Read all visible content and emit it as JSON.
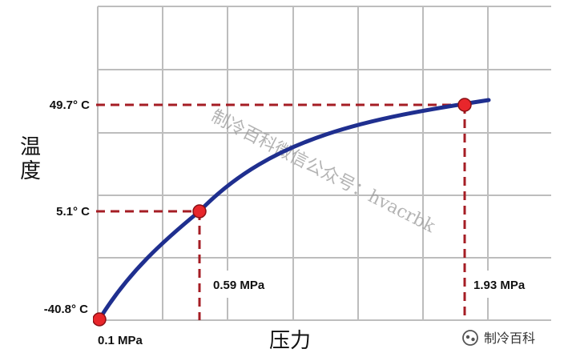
{
  "chart_data": {
    "type": "line",
    "xlabel": "压力",
    "ylabel": "温度",
    "grid": true,
    "curve_color": "#1f2f8f",
    "marker_color": "#e8262b",
    "guide_color": "#a51d24",
    "points": [
      {
        "x_label": "0.1 MPa",
        "y_label": "-40.8° C",
        "x": 0.1,
        "y": -40.8
      },
      {
        "x_label": "0.59 MPa",
        "y_label": "5.1° C",
        "x": 0.59,
        "y": 5.1
      },
      {
        "x_label": "1.93 MPa",
        "y_label": "49.7° C",
        "x": 1.93,
        "y": 49.7
      }
    ]
  },
  "watermark": "制冷百科微信公众号：hvacrbk",
  "badge": {
    "text": "制冷百科",
    "icon": "wechat-official-account-icon"
  }
}
